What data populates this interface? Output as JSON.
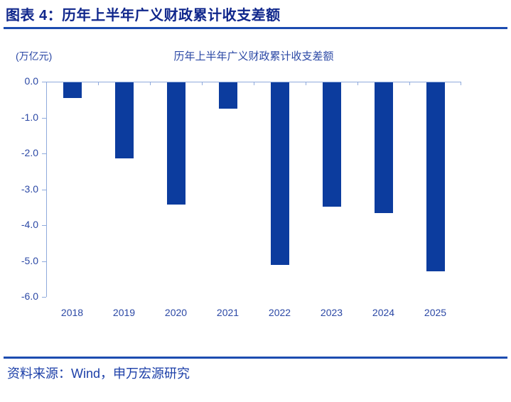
{
  "header": {
    "title": "图表 4：历年上半年广义财政累计收支差额"
  },
  "chart": {
    "unit_label": "(万亿元)",
    "title": "历年上半年广义财政累计收支差额"
  },
  "chart_data": {
    "type": "bar",
    "title": "历年上半年广义财政累计收支差额",
    "categories": [
      "2018",
      "2019",
      "2020",
      "2021",
      "2022",
      "2023",
      "2024",
      "2025"
    ],
    "values": [
      -0.44,
      -2.12,
      -3.41,
      -0.73,
      -5.09,
      -3.46,
      -3.65,
      -5.27
    ],
    "xlabel": "",
    "ylabel": "(万亿元)",
    "ylim": [
      -6.0,
      0.0
    ],
    "yticks": [
      0.0,
      -1.0,
      -2.0,
      -3.0,
      -4.0,
      -5.0,
      -6.0
    ],
    "grid": false,
    "legend": null,
    "bar_orientation": "vertical-hanging-from-zero"
  },
  "footer": {
    "source": "资料来源：Wind，申万宏源研究"
  },
  "colors": {
    "header_text": "#10278C",
    "rule_line": "#1C4CB0",
    "bar_fill": "#0C3C9E",
    "axis_line": "#8FAADC",
    "tick_label": "#2B48A5",
    "chart_title": "#2B48A5",
    "source_text": "#1C3FA8"
  }
}
